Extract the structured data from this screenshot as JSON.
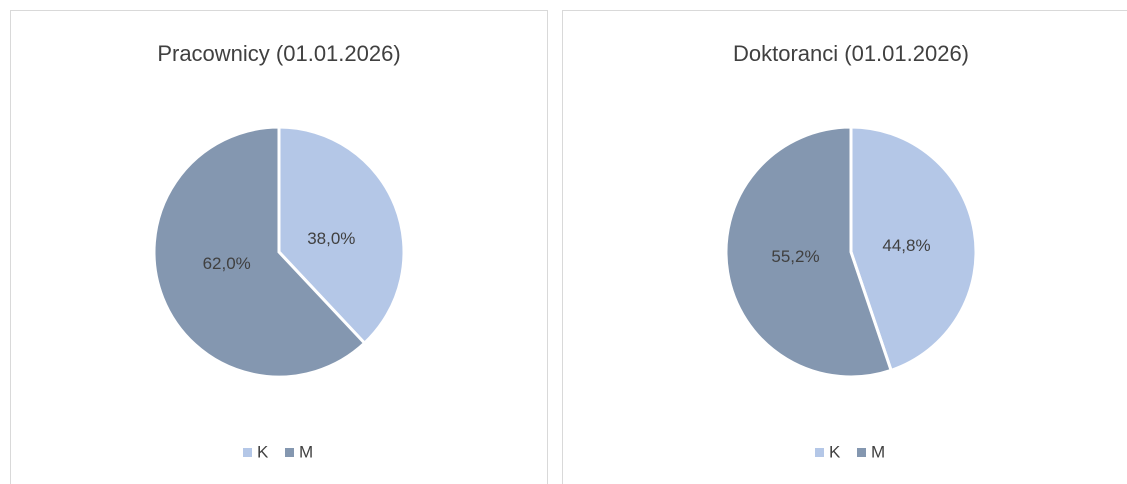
{
  "chart_data": [
    {
      "type": "pie",
      "title": "Pracownicy (01.01.2026)",
      "categories": [
        "K",
        "M"
      ],
      "values": [
        38.0,
        62.0
      ],
      "value_labels": [
        "38,0%",
        "62,0%"
      ],
      "colors": [
        "#b4c7e7",
        "#8497b0"
      ],
      "legend": "bottom"
    },
    {
      "type": "pie",
      "title": "Doktoranci (01.01.2026)",
      "categories": [
        "K",
        "M"
      ],
      "values": [
        44.8,
        55.2
      ],
      "value_labels": [
        "44,8%",
        "55,2%"
      ],
      "colors": [
        "#b4c7e7",
        "#8497b0"
      ],
      "legend": "bottom"
    }
  ]
}
